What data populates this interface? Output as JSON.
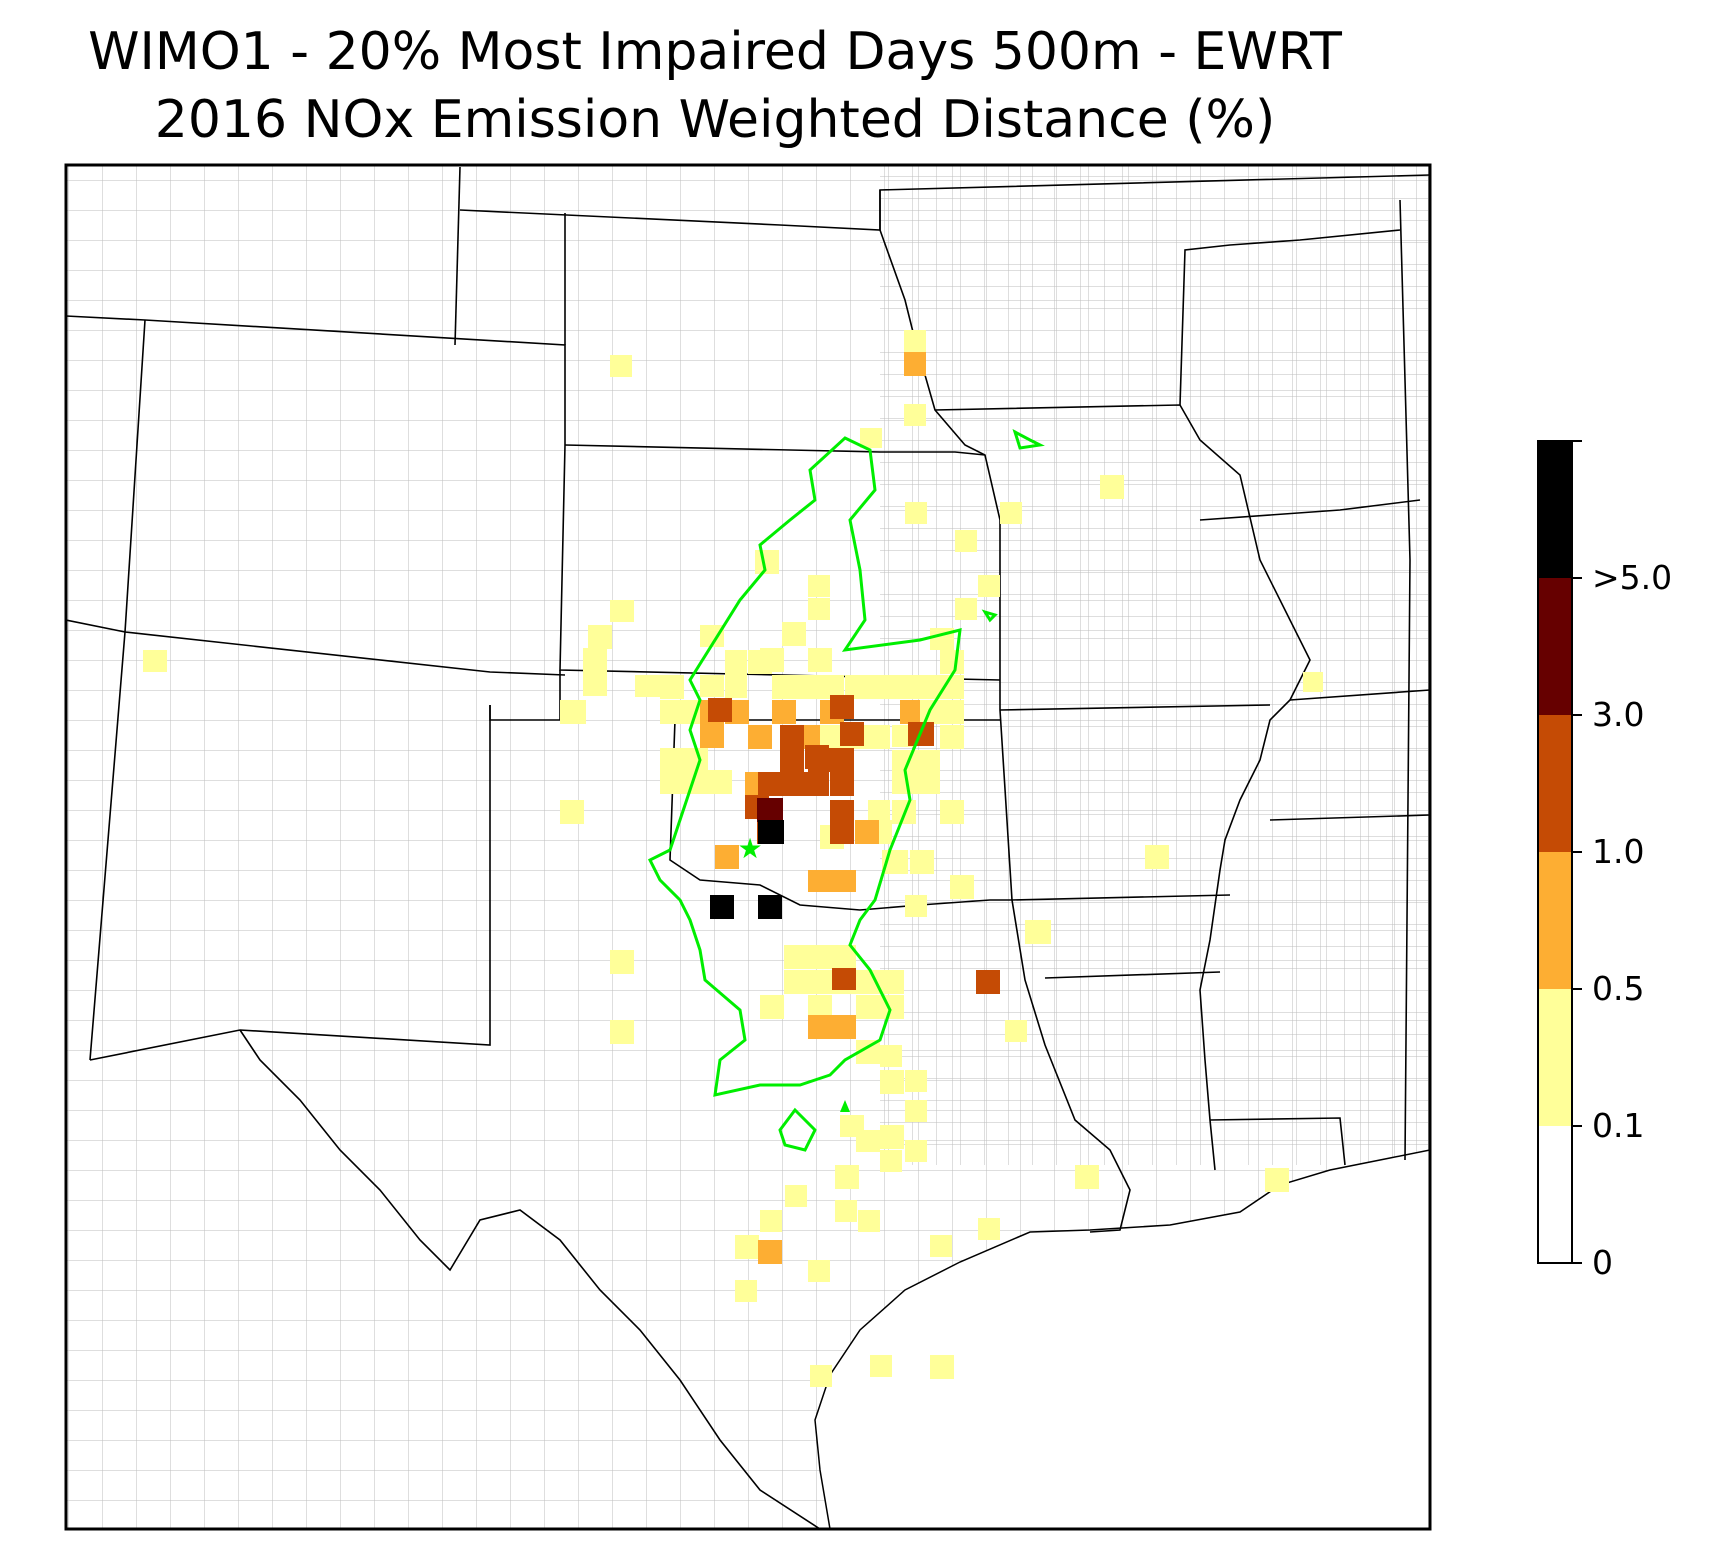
{
  "title_line1": "WIMO1 - 20% Most Impaired Days 500m - EWRT",
  "title_line2": "2016 NOx Emission Weighted Distance (%)",
  "colorbar": {
    "tick_labels": [
      "0",
      "0.1",
      "0.5",
      "1.0",
      "3.0",
      ">5.0"
    ],
    "bins": [
      {
        "from": "0",
        "to": "0.1",
        "color": "#ffffff"
      },
      {
        "from": "0.1",
        "to": "0.5",
        "color": "#ffff99"
      },
      {
        "from": "0.5",
        "to": "1.0",
        "color": "#fdae33"
      },
      {
        "from": "1.0",
        "to": "3.0",
        "color": "#c54b05"
      },
      {
        "from": "3.0",
        "to": ">5.0",
        "color": "#660000"
      },
      {
        "from": ">5.0",
        "to": "",
        "color": "#000000"
      }
    ]
  },
  "legend_colors": {
    "contour": "#00ee00",
    "state_border": "#000000",
    "county_border": "#aaaaaa"
  },
  "markers": [
    {
      "type": "star",
      "color": "#00ee00",
      "meaning": "site"
    }
  ]
}
